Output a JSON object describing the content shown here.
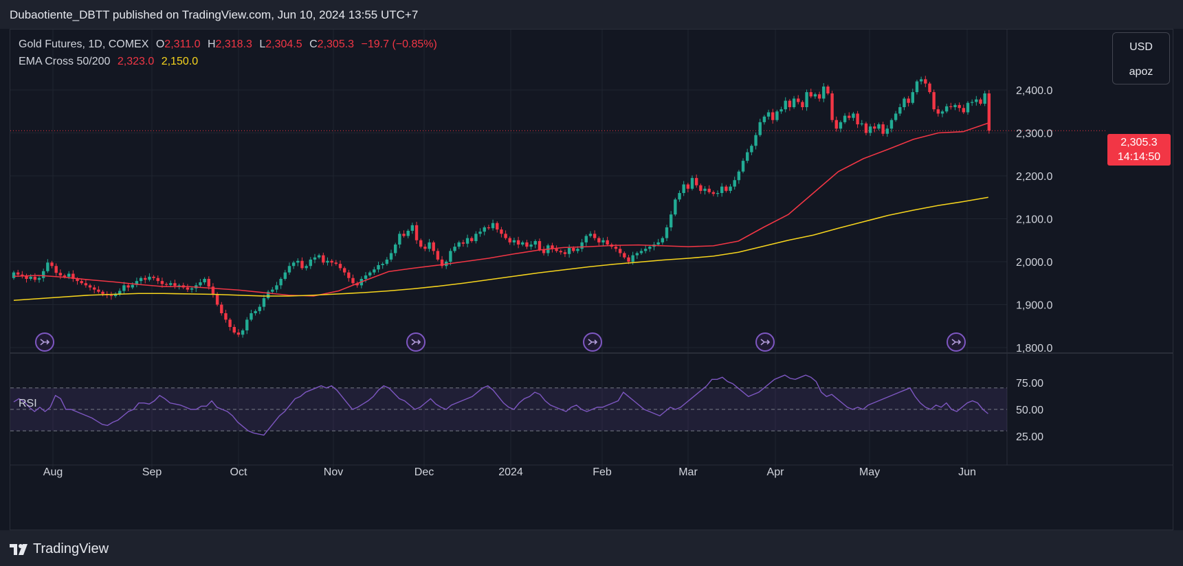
{
  "header": {
    "published": "Dubaotiente_DBTT published on TradingView.com, Jun 10, 2024 13:55 UTC+7"
  },
  "legend": {
    "symbol": "Gold Futures, 1D, COMEX",
    "open_label": "O",
    "open": "2,311.0",
    "high_label": "H",
    "high": "2,318.3",
    "low_label": "L",
    "low": "2,304.5",
    "close_label": "C",
    "close": "2,305.3",
    "change": "−19.7 (−0.85%)",
    "ema_label": "EMA Cross 50/200",
    "ema50": "2,323.0",
    "ema200": "2,150.0"
  },
  "rsi_label": "RSI",
  "scale_box": {
    "currency": "USD",
    "user": "apoz"
  },
  "last_price": {
    "price": "2,305.3",
    "countdown": "14:14:50"
  },
  "brand": {
    "name": "TradingView"
  },
  "colors": {
    "up": "#22ab94",
    "down": "#f23645",
    "ema50": "#f23645",
    "ema200": "#f7d51d",
    "rsi": "#7e57c2",
    "background": "#131722",
    "grid": "#1f2430"
  },
  "chart_data": [
    {
      "type": "candlestick",
      "title": "Gold Futures, 1D, COMEX",
      "x_ticks": [
        "Aug",
        "Sep",
        "Oct",
        "Nov",
        "Dec",
        "2024",
        "Feb",
        "Mar",
        "Apr",
        "May",
        "Jun"
      ],
      "y_ticks": [
        "1,800.0",
        "1,900.0",
        "2,000.0",
        "2,100.0",
        "2,200.0",
        "2,300.0",
        "2,400.0"
      ],
      "ylim": [
        1800,
        2450
      ],
      "last_close": 2305.3,
      "closes": [
        1975,
        1970,
        1968,
        1960,
        1965,
        1958,
        1962,
        1978,
        1998,
        1990,
        1974,
        1968,
        1965,
        1972,
        1960,
        1955,
        1950,
        1945,
        1940,
        1935,
        1930,
        1925,
        1922,
        1920,
        1925,
        1932,
        1945,
        1940,
        1946,
        1955,
        1962,
        1958,
        1965,
        1962,
        1955,
        1948,
        1946,
        1950,
        1944,
        1945,
        1940,
        1935,
        1938,
        1945,
        1952,
        1960,
        1942,
        1925,
        1900,
        1880,
        1865,
        1848,
        1835,
        1830,
        1840,
        1865,
        1880,
        1885,
        1895,
        1915,
        1930,
        1935,
        1945,
        1960,
        1975,
        1990,
        1998,
        2002,
        1985,
        1990,
        2005,
        2010,
        2015,
        1998,
        2002,
        1998,
        1995,
        1985,
        1975,
        1962,
        1950,
        1945,
        1960,
        1968,
        1975,
        1982,
        1992,
        1995,
        2005,
        2020,
        2040,
        2065,
        2060,
        2072,
        2085,
        2050,
        2035,
        2030,
        2045,
        2025,
        2005,
        1990,
        2000,
        2025,
        2035,
        2045,
        2042,
        2055,
        2048,
        2065,
        2070,
        2080,
        2078,
        2090,
        2075,
        2065,
        2055,
        2045,
        2050,
        2040,
        2045,
        2035,
        2040,
        2048,
        2028,
        2020,
        2038,
        2030,
        2025,
        2022,
        2018,
        2032,
        2025,
        2030,
        2045,
        2060,
        2065,
        2055,
        2045,
        2050,
        2040,
        2035,
        2030,
        2020,
        2010,
        2000,
        2015,
        2020,
        2025,
        2030,
        2035,
        2040,
        2045,
        2055,
        2080,
        2110,
        2145,
        2160,
        2180,
        2170,
        2195,
        2178,
        2165,
        2170,
        2162,
        2158,
        2160,
        2175,
        2165,
        2175,
        2190,
        2210,
        2235,
        2255,
        2270,
        2295,
        2325,
        2338,
        2348,
        2330,
        2350,
        2355,
        2375,
        2360,
        2380,
        2372,
        2360,
        2395,
        2385,
        2390,
        2380,
        2408,
        2392,
        2330,
        2310,
        2325,
        2340,
        2335,
        2345,
        2320,
        2322,
        2300,
        2315,
        2310,
        2320,
        2298,
        2310,
        2330,
        2345,
        2360,
        2380,
        2370,
        2395,
        2420,
        2425,
        2415,
        2395,
        2355,
        2345,
        2350,
        2362,
        2360,
        2365,
        2358,
        2348,
        2370,
        2372,
        2378,
        2368,
        2392,
        2305.3
      ]
    },
    {
      "type": "line",
      "title": "EMA Cross 50/200",
      "series": [
        {
          "name": "EMA Cross 50/200",
          "values": [
            1966,
            1968,
            1964,
            1958,
            1953,
            1947,
            1942,
            1942,
            1938,
            1934,
            1928,
            1922,
            1920,
            1932,
            1955,
            1977,
            1985,
            1992,
            2000,
            2008,
            2018,
            2027,
            2033,
            2035,
            2038,
            2039,
            2037,
            2035,
            2037,
            2048,
            2080,
            2110,
            2160,
            2210,
            2240,
            2262,
            2285,
            2300,
            2303,
            2323
          ],
          "x": [
            0,
            5,
            10,
            15,
            20,
            25,
            30,
            35,
            40,
            45,
            50,
            55,
            60,
            65,
            70,
            75,
            80,
            85,
            90,
            95,
            100,
            105,
            110,
            115,
            120,
            125,
            130,
            135,
            140,
            145,
            150,
            155,
            160,
            165,
            170,
            175,
            180,
            185,
            190,
            195
          ]
        },
        {
          "name": "EMA Cross 50/200",
          "values": [
            1910,
            1914,
            1918,
            1922,
            1924,
            1926,
            1926,
            1925,
            1924,
            1922,
            1920,
            1920,
            1922,
            1925,
            1928,
            1932,
            1937,
            1943,
            1950,
            1958,
            1966,
            1974,
            1981,
            1988,
            1994,
            1999,
            2004,
            2008,
            2013,
            2022,
            2036,
            2050,
            2062,
            2078,
            2093,
            2108,
            2120,
            2131,
            2140,
            2150
          ],
          "x": [
            0,
            5,
            10,
            15,
            20,
            25,
            30,
            35,
            40,
            45,
            50,
            55,
            60,
            65,
            70,
            75,
            80,
            85,
            90,
            95,
            100,
            105,
            110,
            115,
            120,
            125,
            130,
            135,
            140,
            145,
            150,
            155,
            160,
            165,
            170,
            175,
            180,
            185,
            190,
            195
          ]
        }
      ]
    },
    {
      "type": "line",
      "title": "RSI",
      "y_ticks": [
        "25.00",
        "50.00",
        "75.00"
      ],
      "ylim": [
        20,
        82
      ],
      "series": [
        {
          "name": "RSI",
          "values": [
            57,
            60,
            57,
            52,
            48,
            52,
            48,
            52,
            63,
            60,
            50,
            50,
            48,
            46,
            44,
            42,
            39,
            36,
            35,
            38,
            40,
            44,
            48,
            50,
            56,
            56,
            55,
            58,
            63,
            60,
            56,
            55,
            54,
            52,
            50,
            50,
            53,
            53,
            58,
            52,
            50,
            48,
            44,
            38,
            34,
            30,
            28,
            27,
            26,
            32,
            38,
            44,
            48,
            54,
            60,
            62,
            66,
            68,
            70,
            72,
            70,
            72,
            68,
            62,
            56,
            50,
            52,
            55,
            58,
            62,
            68,
            72,
            70,
            65,
            60,
            58,
            54,
            50,
            52,
            56,
            60,
            55,
            52,
            50,
            54,
            56,
            58,
            60,
            62,
            66,
            70,
            72,
            68,
            62,
            56,
            52,
            50,
            56,
            60,
            62,
            66,
            64,
            58,
            54,
            52,
            50,
            48,
            52,
            54,
            50,
            48,
            50,
            52,
            52,
            54,
            56,
            58,
            66,
            62,
            58,
            54,
            50,
            48,
            46,
            44,
            48,
            52,
            50,
            52,
            56,
            60,
            64,
            68,
            72,
            78,
            78,
            80,
            76,
            74,
            70,
            66,
            62,
            64,
            66,
            70,
            74,
            78,
            80,
            82,
            79,
            78,
            80,
            82,
            80,
            76,
            66,
            62,
            64,
            60,
            56,
            52,
            50,
            52,
            50,
            54,
            56,
            58,
            60,
            62,
            64,
            66,
            68,
            70,
            62,
            56,
            52,
            50,
            54,
            52,
            56,
            50,
            48,
            52,
            56,
            58,
            56,
            50,
            46
          ]
        }
      ]
    }
  ]
}
